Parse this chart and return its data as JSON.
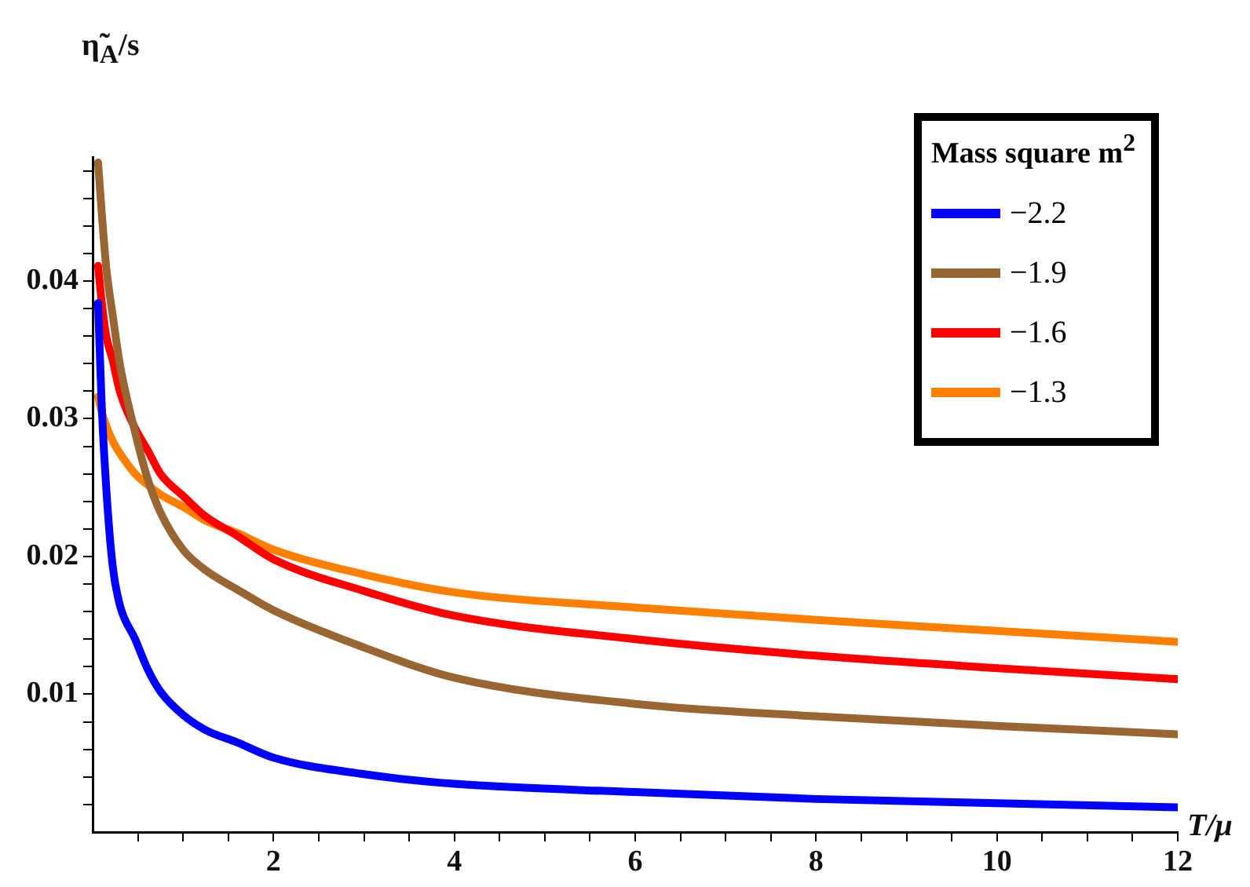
{
  "chart_data": {
    "type": "line",
    "xlabel": "T/μ",
    "ylabel": "η̃$_{A}$/s",
    "legend_title": "Mass square m$^{2}$",
    "legend": "top right",
    "grid": false,
    "marker": "none",
    "line_style": "solid",
    "xlim": [
      0,
      12
    ],
    "ylim": [
      0,
      0.049
    ],
    "xticks": [
      {
        "value": 0.5,
        "label": null
      },
      {
        "value": 1,
        "label": null
      },
      {
        "value": 1.5,
        "label": null
      },
      2,
      {
        "value": 2.5,
        "label": null
      },
      {
        "value": 3,
        "label": null
      },
      {
        "value": 3.5,
        "label": null
      },
      4,
      {
        "value": 4.5,
        "label": null
      },
      {
        "value": 5,
        "label": null
      },
      {
        "value": 5.5,
        "label": null
      },
      6,
      {
        "value": 6.5,
        "label": null
      },
      {
        "value": 7,
        "label": null
      },
      {
        "value": 7.5,
        "label": null
      },
      8,
      {
        "value": 8.5,
        "label": null
      },
      {
        "value": 9,
        "label": null
      },
      {
        "value": 9.5,
        "label": null
      },
      10,
      {
        "value": 10.5,
        "label": null
      },
      {
        "value": 11,
        "label": null
      },
      {
        "value": 11.5,
        "label": null
      },
      12
    ],
    "yticks": [
      {
        "value": 0.002,
        "label": null
      },
      {
        "value": 0.004,
        "label": null
      },
      {
        "value": 0.006,
        "label": null
      },
      {
        "value": 0.008,
        "label": null
      },
      0.01,
      {
        "value": 0.012,
        "label": null
      },
      {
        "value": 0.014,
        "label": null
      },
      {
        "value": 0.016,
        "label": null
      },
      {
        "value": 0.018,
        "label": null
      },
      0.02,
      {
        "value": 0.022,
        "label": null
      },
      {
        "value": 0.024,
        "label": null
      },
      {
        "value": 0.026,
        "label": null
      },
      {
        "value": 0.028,
        "label": null
      },
      0.03,
      {
        "value": 0.032,
        "label": null
      },
      {
        "value": 0.034,
        "label": null
      },
      {
        "value": 0.036,
        "label": null
      },
      {
        "value": 0.038,
        "label": null
      },
      0.04,
      {
        "value": 0.042,
        "label": null
      },
      {
        "value": 0.044,
        "label": null
      },
      {
        "value": 0.046,
        "label": null
      },
      {
        "value": 0.048,
        "label": null
      }
    ],
    "x": [
      0.06,
      0.1,
      0.15,
      0.22,
      0.3,
      0.47,
      0.61,
      0.75,
      1,
      1.25,
      1.6,
      2,
      3,
      4,
      6,
      8,
      10,
      12
    ],
    "series": [
      {
        "name": "−2.2",
        "color": "#0000ff",
        "values": [
          0.0384,
          0.031,
          0.025,
          0.0194,
          0.0165,
          0.014,
          0.0118,
          0.0102,
          0.0085,
          0.0074,
          0.0065,
          0.0054,
          0.0042,
          0.0035,
          0.0029,
          0.0024,
          0.0021,
          0.0018
        ]
      },
      {
        "name": "−1.9",
        "color": "#996633",
        "values": [
          0.0486,
          0.045,
          0.041,
          0.0376,
          0.034,
          0.029,
          0.0256,
          0.0232,
          0.0205,
          0.019,
          0.0176,
          0.0161,
          0.0134,
          0.0112,
          0.0093,
          0.0084,
          0.0077,
          0.0071
        ]
      },
      {
        "name": "−1.6",
        "color": "#ff0000",
        "values": [
          0.0411,
          0.0385,
          0.036,
          0.0343,
          0.032,
          0.0293,
          0.0277,
          0.026,
          0.0244,
          0.0229,
          0.0215,
          0.0198,
          0.0175,
          0.0157,
          0.014,
          0.0128,
          0.0119,
          0.0111
        ]
      },
      {
        "name": "−1.3",
        "color": "#ff8000",
        "values": [
          0.0316,
          0.0305,
          0.0295,
          0.0284,
          0.0275,
          0.026,
          0.0252,
          0.0245,
          0.0236,
          0.0226,
          0.0217,
          0.0205,
          0.0187,
          0.0174,
          0.0163,
          0.0154,
          0.0146,
          0.0138
        ]
      }
    ]
  }
}
